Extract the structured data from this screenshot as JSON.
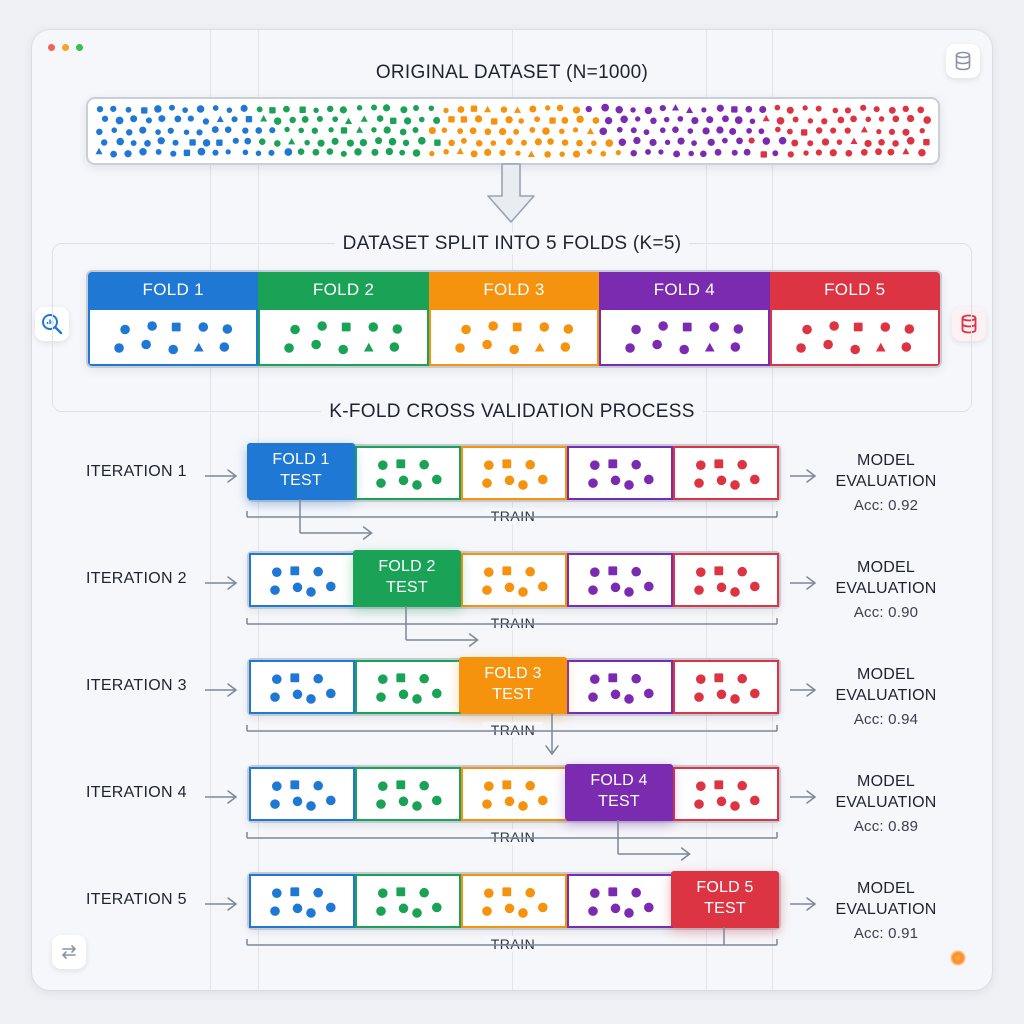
{
  "titles": {
    "original": "ORIGINAL DATASET (N=1000)",
    "split": "DATASET SPLIT INTO 5 FOLDS (K=5)",
    "process": "K-FOLD CROSS VALIDATION PROCESS"
  },
  "colors": {
    "blue": "#1f78d4",
    "green": "#1aa257",
    "orange": "#f5930e",
    "purple": "#7b2bb0",
    "red": "#dc3442"
  },
  "folds": [
    {
      "label": "FOLD 1",
      "color": "#1f78d4"
    },
    {
      "label": "FOLD 2",
      "color": "#1aa257"
    },
    {
      "label": "FOLD 3",
      "color": "#f5930e"
    },
    {
      "label": "FOLD 4",
      "color": "#7b2bb0"
    },
    {
      "label": "FOLD 5",
      "color": "#dc3442"
    }
  ],
  "iterations": [
    {
      "label": "ITERATION 1",
      "test_fold": 1,
      "test_line1": "FOLD 1",
      "test_line2": "TEST",
      "train_label": "TRAIN",
      "eval_line1": "MODEL",
      "eval_line2": "EVALUATION",
      "accuracy": "Acc: 0.92"
    },
    {
      "label": "ITERATION 2",
      "test_fold": 2,
      "test_line1": "FOLD 2",
      "test_line2": "TEST",
      "train_label": "TRAIN",
      "eval_line1": "MODEL",
      "eval_line2": "EVALUATION",
      "accuracy": "Acc: 0.90"
    },
    {
      "label": "ITERATION 3",
      "test_fold": 3,
      "test_line1": "FOLD 3",
      "test_line2": "TEST",
      "train_label": "TRAIN",
      "eval_line1": "MODEL",
      "eval_line2": "EVALUATION",
      "accuracy": "Acc: 0.94"
    },
    {
      "label": "ITERATION 4",
      "test_fold": 4,
      "test_line1": "FOLD 4",
      "test_line2": "TEST",
      "train_label": "TRAIN",
      "eval_line1": "MODEL",
      "eval_line2": "EVALUATION",
      "accuracy": "Acc: 0.89"
    },
    {
      "label": "ITERATION 5",
      "test_fold": 5,
      "test_line1": "FOLD 5",
      "test_line2": "TEST",
      "train_label": "TRAIN",
      "eval_line1": "MODEL",
      "eval_line2": "EVALUATION",
      "accuracy": "Acc: 0.91"
    }
  ],
  "icons": {
    "top_right": "database-icon",
    "left": "analytics-search-icon",
    "right": "database-icon",
    "bottom_left": "transfer-icon",
    "bottom_right": "status-dot-icon"
  }
}
